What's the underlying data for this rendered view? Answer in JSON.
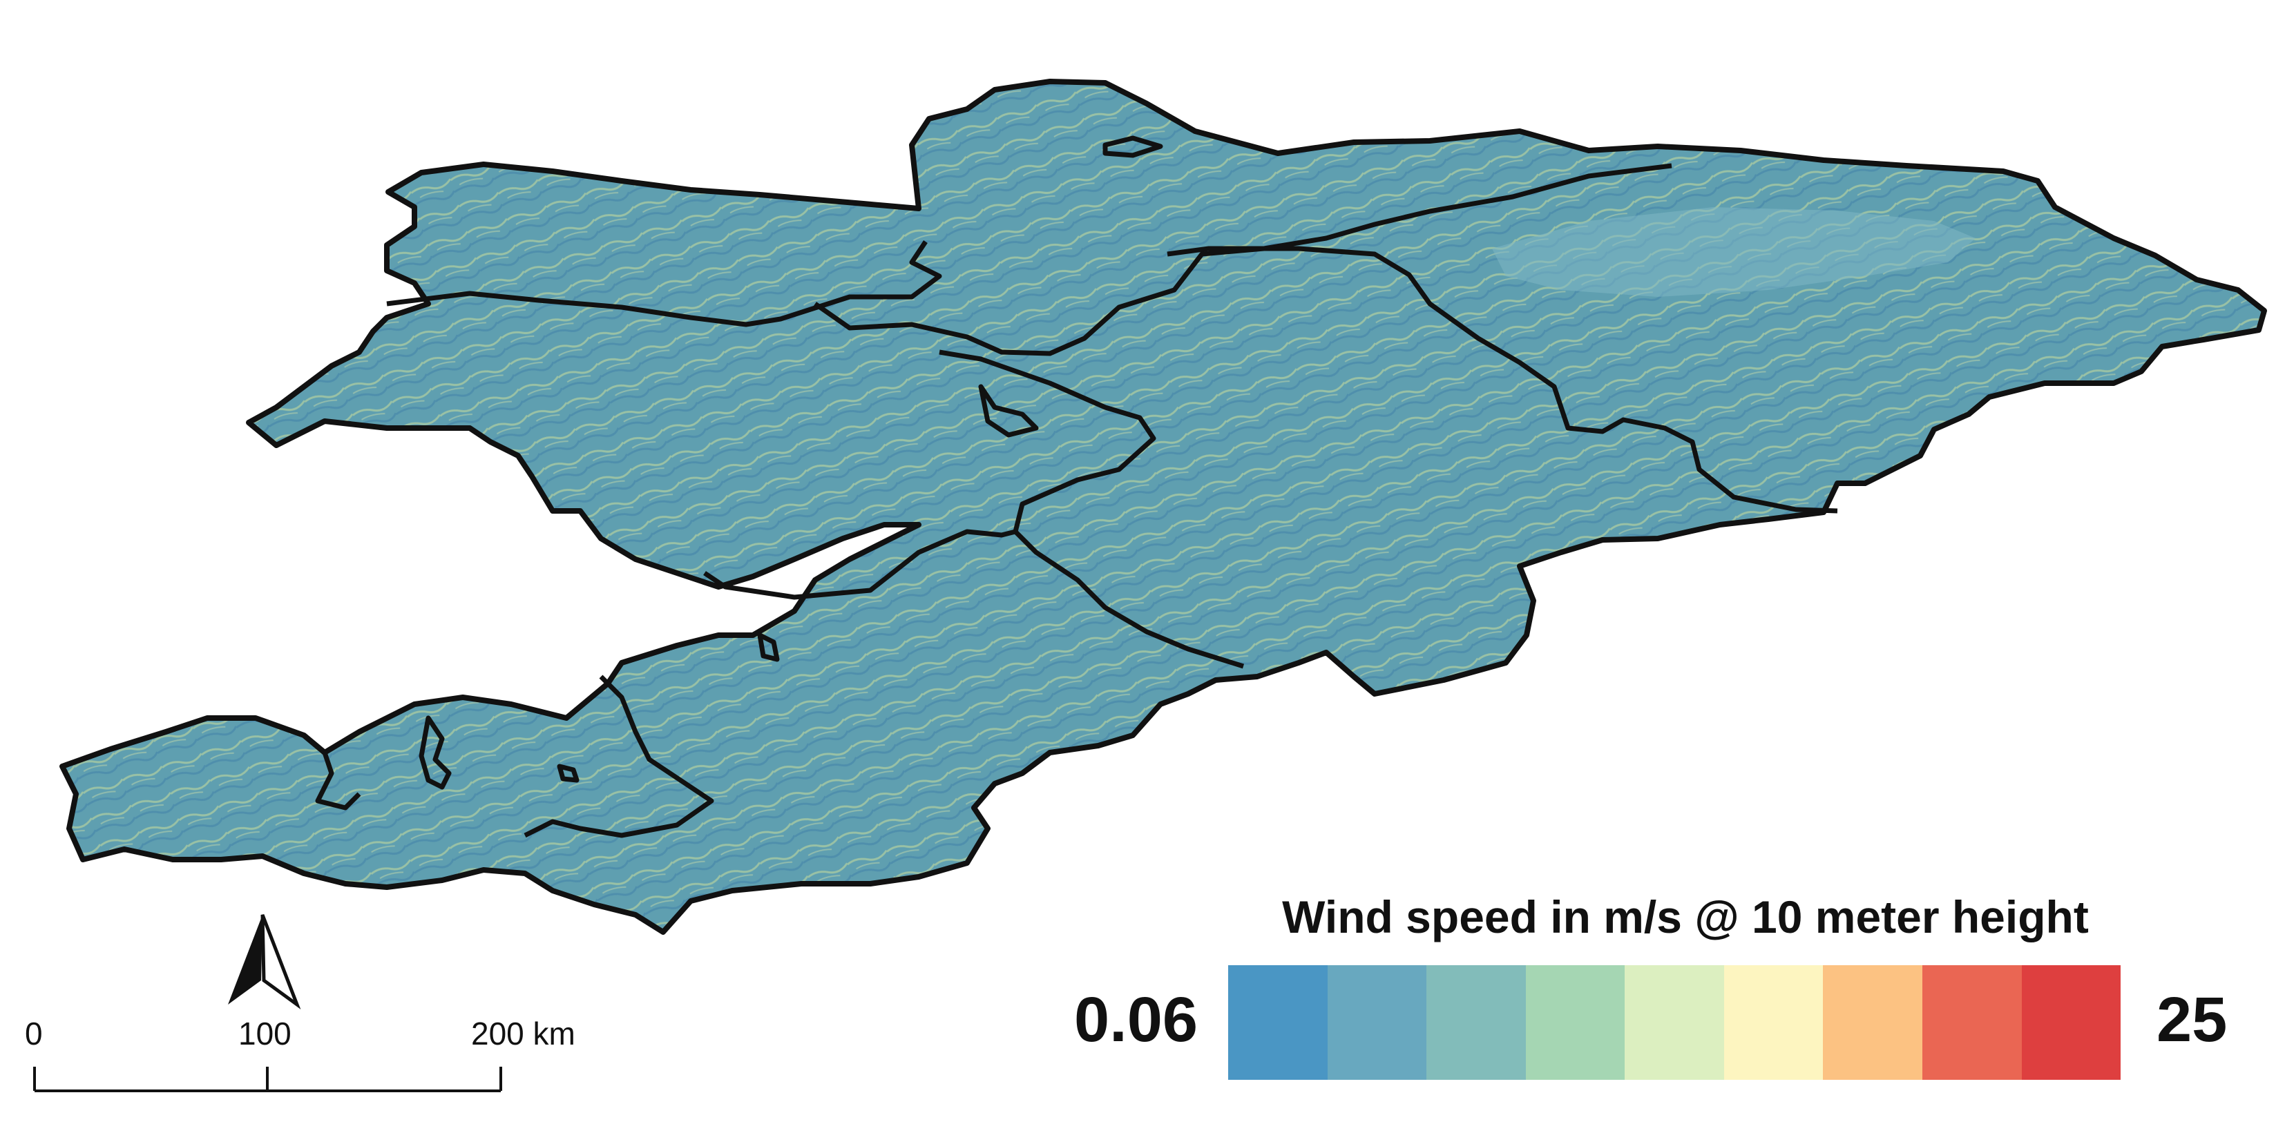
{
  "legend": {
    "title": "Wind speed in m/s @ 10 meter height",
    "min_label": "0.06",
    "max_label": "25",
    "colors": [
      "#4a96c4",
      "#68a8bf",
      "#82bcba",
      "#a5d6b3",
      "#dcefc0",
      "#fdf5c0",
      "#fcc282",
      "#ea6653",
      "#de3f3f"
    ]
  },
  "scale_bar": {
    "labels": [
      "0",
      "100",
      "200 km"
    ]
  },
  "map": {
    "fill_color": "#5f9fb0",
    "highlight_color": "#c8dc9c",
    "border_color": "#111111",
    "north_arrow": "north-arrow-icon"
  }
}
